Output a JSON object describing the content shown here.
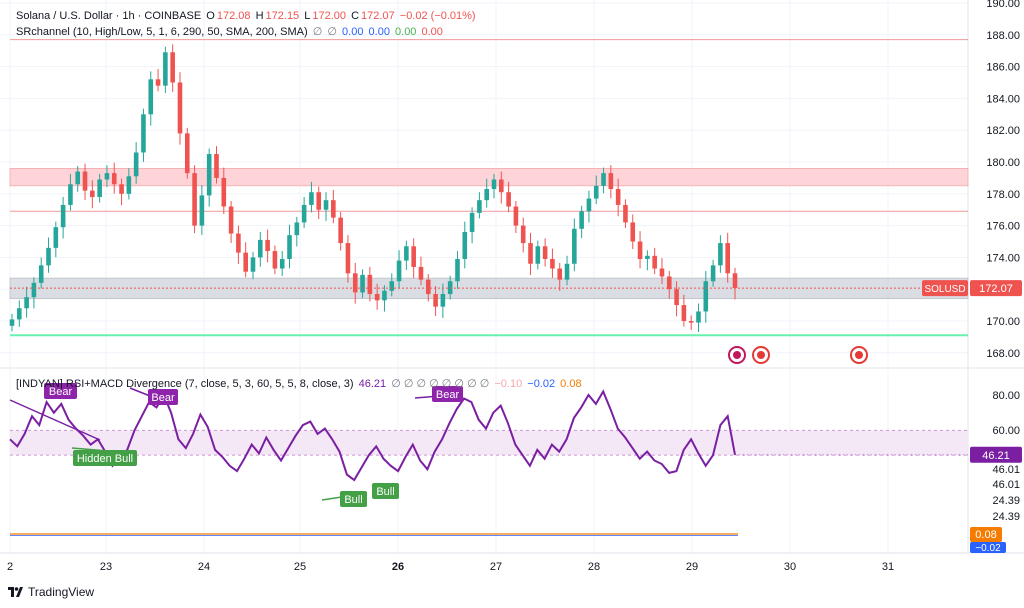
{
  "header": {
    "symbol_line": "Solana / U.S. Dollar · 1h · COINBASE",
    "o_label": "O",
    "o_value": "172.08",
    "h_label": "H",
    "h_value": "172.15",
    "l_label": "L",
    "l_value": "172.00",
    "c_label": "C",
    "c_value": "172.07",
    "change": "−0.02 (−0.01%)",
    "indicator": "SRchannel (10, High/Low, 5, 1, 6, 290, 50, SMA, 200, SMA)",
    "indicator_values": [
      "∅",
      "∅",
      "0.00",
      "0.00",
      "0.00",
      "0.00"
    ]
  },
  "rsi_header": {
    "title": "[INDYAN] RSI+MACD Divergence (7, close, 5, 3, 60, 5, 5, 8, close, 3)",
    "value": "46.21",
    "blanks": "∅ ∅ ∅ ∅ ∅ ∅ ∅ ∅",
    "v1": "−0.10",
    "v2": "−0.02",
    "v3": "0.08"
  },
  "price_axis": {
    "ticks": [
      "190.00",
      "188.00",
      "186.00",
      "184.00",
      "182.00",
      "180.00",
      "178.00",
      "176.00",
      "174.00",
      "172.00",
      "170.00",
      "168.00"
    ],
    "last_label": "172.07",
    "symbol_badge": "SOLUSD"
  },
  "rsi_axis": {
    "ticks": [
      "80.00",
      "60.00",
      "46.01",
      "46.01",
      "24.39",
      "24.39"
    ],
    "current": "46.21",
    "macd_pos": "0.08",
    "macd_neg": "−0.02"
  },
  "time_axis": [
    "2",
    "23",
    "24",
    "25",
    "26",
    "27",
    "28",
    "29",
    "30",
    "31"
  ],
  "signals": {
    "bear": "Bear",
    "hidden_bull": "Hidden Bull",
    "bull": "Bull"
  },
  "brand": "TradingView",
  "colors": {
    "up": "#26a69a",
    "down": "#ef5350",
    "rsi": "#7b1fa2",
    "zone_red": "#ffcdd2",
    "zone_grey": "#d1d4dc"
  },
  "chart_data": [
    {
      "type": "candlestick",
      "ylim": [
        167,
        190
      ],
      "x_ticks": [
        "2",
        "23",
        "24",
        "25",
        "26",
        "27",
        "28",
        "29",
        "30",
        "31"
      ],
      "series": [
        {
          "values": [
            170.1,
            170.8,
            171.5,
            172.4,
            173.5,
            174.6,
            175.9,
            177.3,
            178.6,
            179.4,
            178.2,
            177.8,
            178.9,
            179.3,
            178.6,
            178.0,
            179.1,
            180.6,
            183.0,
            185.2,
            184.8,
            186.9,
            185.0,
            181.8,
            179.3,
            176.0,
            177.9,
            180.5,
            179.0,
            177.2,
            175.5,
            174.3,
            173.1,
            174.0,
            175.1,
            174.4,
            173.3,
            173.9,
            175.4,
            176.2,
            177.3,
            178.1,
            177.0,
            177.6,
            176.5,
            174.9,
            173.0,
            171.8,
            172.9,
            171.7,
            171.3,
            171.9,
            172.5,
            173.8,
            174.7,
            173.4,
            172.6,
            171.7,
            170.9,
            171.7,
            172.5,
            173.9,
            175.6,
            176.8,
            177.6,
            178.3,
            178.9,
            178.1,
            177.2,
            176.0,
            174.9,
            173.6,
            174.7,
            173.9,
            173.3,
            172.6,
            173.6,
            175.8,
            176.9,
            177.7,
            178.5,
            179.3,
            178.3,
            177.3,
            176.2,
            175.0,
            173.9,
            174.1,
            173.3,
            172.8,
            172.0,
            171.0,
            170.0,
            169.9,
            170.6,
            172.5,
            173.5,
            174.9,
            173.0,
            172.07
          ]
        }
      ],
      "zones": [
        {
          "from": 178.5,
          "to": 179.6,
          "color": "red"
        },
        {
          "from": 171.4,
          "to": 172.7,
          "color": "grey"
        }
      ],
      "lines": [
        187.7,
        176.9,
        169.1
      ],
      "last": 172.07
    },
    {
      "type": "line",
      "title": "[INDYAN] RSI+MACD Divergence",
      "ylim": [
        10,
        90
      ],
      "band": [
        46.01,
        60
      ],
      "series": [
        {
          "values": [
            55,
            51,
            58,
            68,
            63,
            76,
            70,
            75,
            66,
            61,
            57,
            52,
            55,
            48,
            40,
            45,
            49,
            60,
            68,
            76,
            73,
            80,
            70,
            55,
            50,
            58,
            69,
            62,
            49,
            45,
            40,
            37,
            44,
            52,
            47,
            56,
            49,
            43,
            50,
            57,
            63,
            65,
            58,
            61,
            55,
            48,
            35,
            32,
            39,
            46,
            51,
            44,
            40,
            37,
            45,
            52,
            43,
            38,
            48,
            55,
            64,
            72,
            78,
            76,
            66,
            61,
            70,
            74,
            64,
            52,
            46,
            40,
            49,
            44,
            52,
            48,
            55,
            67,
            73,
            80,
            75,
            82,
            72,
            61,
            56,
            50,
            44,
            48,
            43,
            41,
            36,
            37,
            49,
            55,
            47,
            40,
            46,
            63,
            68,
            46.21
          ]
        }
      ]
    }
  ]
}
